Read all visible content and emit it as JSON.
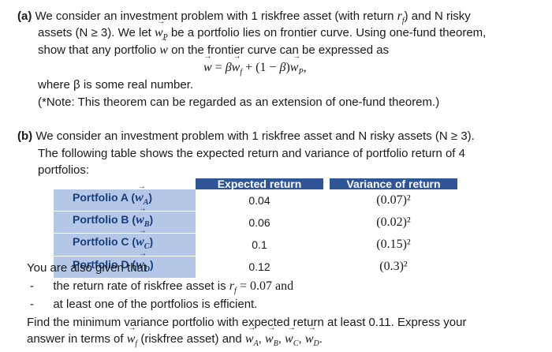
{
  "part_a": {
    "label": "(a)",
    "l1": "We consider an investment problem with 1 riskfree asset (with return ",
    "l1_end": ") and N risky",
    "l2": "assets (N ≥ 3). We let ",
    "l2_end": " be a portfolio lies on frontier curve. Using one-fund theorem,",
    "l3": "show that any portfolio ",
    "l3_end": " on the frontier curve can be expressed as",
    "equation": "= βw_f + (1 − β)w_P,",
    "where": "where β is some real number.",
    "note": "(*Note: This theorem can be regarded as an extension of one-fund theorem.)"
  },
  "part_b": {
    "label": "(b)",
    "l1": "We consider an investment problem with 1 riskfree asset and N risky assets (N ≥ 3).",
    "l2": "The following table shows the expected return and variance of portfolio return of 4",
    "l3": "portfolios:",
    "table": {
      "headers": [
        "Expected return",
        "Variance of return"
      ],
      "rows": [
        {
          "name": "Portfolio A",
          "sub": "A",
          "ret": "0.04",
          "var": "(0.07)²"
        },
        {
          "name": "Portfolio B",
          "sub": "B",
          "ret": "0.06",
          "var": "(0.02)²"
        },
        {
          "name": "Portfolio C",
          "sub": "C",
          "ret": "0.1",
          "var": "(0.15)²"
        },
        {
          "name": "Portfolio D",
          "sub": "D",
          "ret": "0.12",
          "var": "(0.3)²"
        }
      ]
    },
    "given": "You are also given that",
    "bullet1": "the return rate of riskfree asset is ",
    "bullet1_val": "= 0.07 and",
    "bullet2": "at least one of the portfolios is efficient.",
    "find1": "Find the minimum variance portfolio with expected return at least 0.11. Express your",
    "find2": "answer in terms of ",
    "find2_mid": " (riskfree asset) and "
  }
}
